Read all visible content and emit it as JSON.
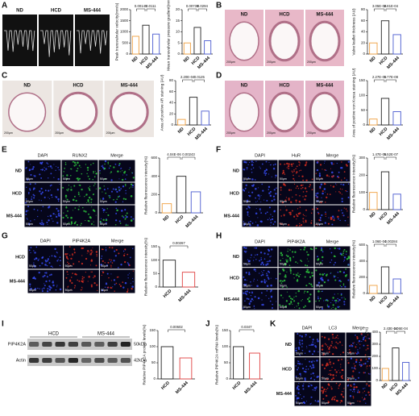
{
  "figure": {
    "panels": [
      {
        "label": "A",
        "columns": [
          "ND",
          "HCD",
          "MS-444"
        ]
      },
      {
        "label": "B",
        "columns": [
          "ND",
          "HCD",
          "MS-444"
        ],
        "scale_bar": "200μm"
      },
      {
        "label": "C",
        "columns": [
          "ND",
          "HCD",
          "MS-444"
        ],
        "scale_bar": "200μm"
      },
      {
        "label": "D",
        "columns": [
          "ND",
          "HCD",
          "MS-444"
        ],
        "scale_bar": "200μm"
      },
      {
        "label": "E",
        "columns": [
          "DAPI",
          "RUNX2",
          "Merge"
        ],
        "rows": [
          "ND",
          "HCD",
          "MS-444"
        ],
        "scale_bar": "50μm"
      },
      {
        "label": "F",
        "columns": [
          "DAPI",
          "HuR",
          "Merge"
        ],
        "rows": [
          "ND",
          "HCD",
          "MS-444"
        ],
        "scale_bar": "50μm"
      },
      {
        "label": "G",
        "columns": [
          "DAPI",
          "PIP4K2A",
          "Merge"
        ],
        "rows": [
          "HCD",
          "MS-444"
        ],
        "scale_bar": "50μm"
      },
      {
        "label": "H",
        "columns": [
          "DAPI",
          "PIP4K2A",
          "Merge"
        ],
        "rows": [
          "ND",
          "HCD",
          "MS-444"
        ],
        "scale_bar": "50μm"
      },
      {
        "label": "I",
        "columns": [
          "HCD",
          "MS-444"
        ],
        "bands": [
          {
            "name": "PIP4K2A",
            "size": "50kDa"
          },
          {
            "name": "Actin",
            "size": "42kDa"
          }
        ]
      },
      {
        "label": "J"
      },
      {
        "label": "K",
        "columns": [
          "DAPI",
          "LC3",
          "Merge"
        ],
        "rows": [
          "ND",
          "HCD",
          "MS-444"
        ],
        "scale_bar": "50μm"
      }
    ]
  },
  "chart_data": [
    {
      "type": "bar",
      "ylabel": "Peak transvalvular velocity(mm/s)",
      "categories": [
        "ND",
        "HCD",
        "MS-444"
      ],
      "values": [
        800,
        1300,
        900
      ],
      "colors": [
        "#f0a040",
        "#222222",
        "#4a5bd0"
      ],
      "ylim": [
        0,
        2000
      ],
      "yticks": [
        0,
        500,
        1000,
        1500,
        2000
      ],
      "pvalues": [
        "0.00145",
        "0.0111"
      ]
    },
    {
      "type": "bar",
      "ylabel": "Mean transvalvular pressure gradient(mmHg)",
      "categories": [
        "ND",
        "HCD",
        "MS-444"
      ],
      "values": [
        5,
        12,
        6
      ],
      "colors": [
        "#f0a040",
        "#222222",
        "#4a5bd0"
      ],
      "ylim": [
        0,
        20
      ],
      "yticks": [
        0,
        5,
        10,
        15,
        20
      ],
      "pvalues": [
        "0.00738",
        "0.0294"
      ]
    },
    {
      "type": "bar",
      "ylabel": "Valve leaflet thickness (AU)",
      "categories": [
        "ND",
        "HCD",
        "MS-444"
      ],
      "values": [
        20,
        60,
        35
      ],
      "colors": [
        "#f0a040",
        "#222222",
        "#4a5bd0"
      ],
      "ylim": [
        0,
        80
      ],
      "yticks": [
        0,
        20,
        40,
        60,
        80
      ],
      "pvalues": [
        "3.05E-06",
        "2.81E-04"
      ]
    },
    {
      "type": "bar",
      "ylabel": "Area of positive AR staining (AU)",
      "categories": [
        "ND",
        "HCD",
        "MS-444"
      ],
      "values": [
        10,
        50,
        25
      ],
      "colors": [
        "#f0a040",
        "#222222",
        "#4a5bd0"
      ],
      "ylim": [
        0,
        80
      ],
      "yticks": [
        0,
        20,
        40,
        60,
        80
      ],
      "pvalues": [
        "2.20E-04",
        "0.0125"
      ]
    },
    {
      "type": "bar",
      "ylabel": "Area of positive von Kossa staining (AU)",
      "categories": [
        "ND",
        "HCD",
        "MS-444"
      ],
      "values": [
        20,
        90,
        45
      ],
      "colors": [
        "#f0a040",
        "#222222",
        "#4a5bd0"
      ],
      "ylim": [
        0,
        150
      ],
      "yticks": [
        0,
        50,
        100,
        150
      ],
      "pvalues": [
        "2.27E-09",
        "1.77E-08"
      ]
    },
    {
      "type": "bar",
      "ylabel": "Relative fluorescence intensity(%)",
      "categories": [
        "ND",
        "HCD",
        "MS-444"
      ],
      "values": [
        100,
        400,
        230
      ],
      "colors": [
        "#f0a040",
        "#222222",
        "#4a5bd0"
      ],
      "ylim": [
        0,
        600
      ],
      "yticks": [
        0,
        200,
        400,
        600
      ],
      "pvalues": [
        "4.04E-06",
        "0.00243"
      ]
    },
    {
      "type": "bar",
      "ylabel": "Relative fluorescence intensity(%)",
      "categories": [
        "ND",
        "HCD",
        "MS-444"
      ],
      "values": [
        100,
        220,
        90
      ],
      "colors": [
        "#f0a040",
        "#222222",
        "#4a5bd0"
      ],
      "ylim": [
        0,
        300
      ],
      "yticks": [
        0,
        100,
        200,
        300
      ],
      "pvalues": [
        "1.47E-05",
        "6.52E-07"
      ]
    },
    {
      "type": "bar",
      "ylabel": "Relative fluorescence intensity(%)",
      "categories": [
        "HCD",
        "MS-444"
      ],
      "values": [
        100,
        55
      ],
      "colors": [
        "#222222",
        "#e04040"
      ],
      "ylim": [
        0,
        150
      ],
      "yticks": [
        0,
        50,
        100,
        150
      ],
      "pvalues": [
        "0.00267"
      ]
    },
    {
      "type": "bar",
      "ylabel": "Relative fluorescence intensity(%)",
      "categories": [
        "ND",
        "HCD",
        "MS-444"
      ],
      "values": [
        100,
        330,
        180
      ],
      "colors": [
        "#f0a040",
        "#222222",
        "#4a5bd0"
      ],
      "ylim": [
        0,
        600
      ],
      "yticks": [
        0,
        200,
        400,
        600
      ],
      "pvalues": [
        "1.06E-04",
        "0.00284"
      ]
    },
    {
      "type": "bar",
      "ylabel": "Relative PIP4K2A protein levels(%)",
      "categories": [
        "HCD",
        "MS-444"
      ],
      "values": [
        100,
        65
      ],
      "colors": [
        "#222222",
        "#e04040"
      ],
      "ylim": [
        0,
        150
      ],
      "yticks": [
        0,
        50,
        100,
        150
      ],
      "pvalues": [
        "0.00602"
      ]
    },
    {
      "type": "bar",
      "ylabel": "Relative PIP4K2A mRNA levels(%)",
      "categories": [
        "HCD",
        "MS-444"
      ],
      "values": [
        100,
        80
      ],
      "colors": [
        "#222222",
        "#e04040"
      ],
      "ylim": [
        0,
        150
      ],
      "yticks": [
        0,
        50,
        100,
        150
      ],
      "pvalues": [
        "0.0347"
      ]
    },
    {
      "type": "bar",
      "ylabel": "Relative fluorescence intensity(%)",
      "categories": [
        "ND",
        "HCD",
        "MS-444"
      ],
      "values": [
        100,
        270,
        150
      ],
      "colors": [
        "#f0a040",
        "#222222",
        "#4a5bd0"
      ],
      "ylim": [
        0,
        400
      ],
      "yticks": [
        0,
        100,
        200,
        300,
        400
      ],
      "pvalues": [
        "2.43E-04",
        "2.06E-04"
      ]
    }
  ]
}
